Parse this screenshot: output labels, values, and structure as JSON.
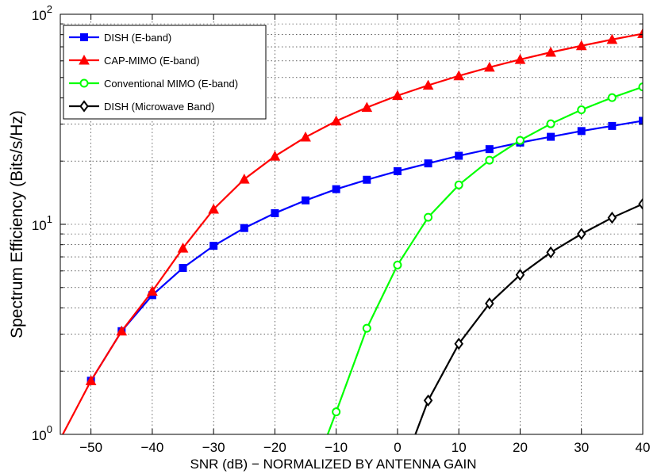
{
  "chart_data": {
    "type": "line",
    "xlabel": "SNR (dB) − NORMALIZED BY ANTENNA GAIN",
    "ylabel": "Spectrum Efficiency (Bits/s/Hz)",
    "xlim": [
      -55,
      40
    ],
    "ylim": [
      1,
      100
    ],
    "yscale": "log",
    "grid": true,
    "legend_position": "top-left",
    "x_ticks": [
      "−50",
      "−40",
      "−30",
      "−20",
      "−10",
      "0",
      "10",
      "20",
      "30",
      "40"
    ],
    "x_tick_values": [
      -50,
      -40,
      -30,
      -20,
      -10,
      0,
      10,
      20,
      30,
      40
    ],
    "y_ticks": [
      {
        "value": 1,
        "base": "10",
        "exp": "0"
      },
      {
        "value": 10,
        "base": "10",
        "exp": "1"
      },
      {
        "value": 100,
        "base": "10",
        "exp": "2"
      }
    ],
    "series": [
      {
        "name": "DISH (E-band)",
        "color": "#0000ff",
        "marker": "square",
        "x": [
          -50,
          -45,
          -40,
          -35,
          -30,
          -25,
          -20,
          -15,
          -10,
          -5,
          0,
          5,
          10,
          15,
          20,
          25,
          30,
          35,
          40
        ],
        "y": [
          1.8,
          3.1,
          4.6,
          6.2,
          7.9,
          9.6,
          11.3,
          13.0,
          14.7,
          16.3,
          17.9,
          19.5,
          21.2,
          22.8,
          24.5,
          26.1,
          27.8,
          29.4,
          31.1
        ]
      },
      {
        "name": "CAP-MIMO (E-band)",
        "color": "#ff0000",
        "marker": "triangle",
        "line_x_start": -55,
        "line_y_start": 0.95,
        "x": [
          -50,
          -45,
          -40,
          -35,
          -30,
          -25,
          -20,
          -15,
          -10,
          -5,
          0,
          5,
          10,
          15,
          20,
          25,
          30,
          35,
          40
        ],
        "y": [
          1.8,
          3.1,
          4.8,
          7.7,
          11.8,
          16.4,
          21.1,
          26.0,
          31.0,
          36.0,
          41.0,
          45.9,
          50.9,
          55.9,
          60.9,
          65.9,
          70.8,
          75.8,
          80.8
        ]
      },
      {
        "name": "Conventional MIMO (E-band)",
        "color": "#00ff00",
        "marker": "circle",
        "line_x_start": -11.5,
        "line_y_start": 0.98,
        "x": [
          -10,
          -5,
          0,
          5,
          10,
          15,
          20,
          25,
          30,
          35,
          40
        ],
        "y": [
          1.28,
          3.2,
          6.4,
          10.8,
          15.4,
          20.2,
          25.1,
          30.1,
          35.1,
          40.1,
          45.1
        ]
      },
      {
        "name": "DISH (Microwave Band)",
        "color": "#000000",
        "marker": "diamond",
        "line_x_start": 2.8,
        "line_y_start": 0.98,
        "x": [
          5,
          10,
          15,
          20,
          25,
          30,
          35,
          40
        ],
        "y": [
          1.45,
          2.7,
          4.2,
          5.75,
          7.35,
          9.0,
          10.75,
          12.5
        ]
      }
    ]
  }
}
